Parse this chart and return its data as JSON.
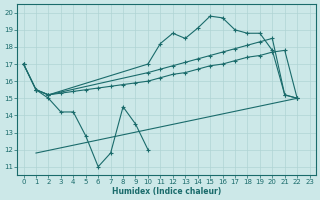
{
  "xlabel": "Humidex (Indice chaleur)",
  "bg_color": "#cce8e8",
  "line_color": "#1a6b6b",
  "grid_color": "#b0d4d4",
  "xlim": [
    -0.5,
    23.5
  ],
  "ylim": [
    10.5,
    20.5
  ],
  "xticks": [
    0,
    1,
    2,
    3,
    4,
    5,
    6,
    7,
    8,
    9,
    10,
    11,
    12,
    13,
    14,
    15,
    16,
    17,
    18,
    19,
    20,
    21,
    22,
    23
  ],
  "yticks": [
    11,
    12,
    13,
    14,
    15,
    16,
    17,
    18,
    19,
    20
  ],
  "series_main": {
    "x": [
      0,
      1,
      2,
      10,
      11,
      12,
      13,
      14,
      15,
      16,
      17,
      18,
      19,
      20,
      21,
      22
    ],
    "y": [
      17.0,
      15.5,
      15.2,
      17.0,
      18.2,
      18.8,
      18.5,
      19.1,
      19.8,
      19.7,
      19.0,
      18.8,
      18.8,
      17.8,
      15.2,
      15.0
    ]
  },
  "series_mid_upper": {
    "x": [
      0,
      1,
      2,
      10,
      11,
      12,
      13,
      14,
      15,
      16,
      17,
      18,
      19,
      20,
      21,
      22
    ],
    "y": [
      17.0,
      15.5,
      15.2,
      16.5,
      16.7,
      16.9,
      17.1,
      17.3,
      17.5,
      17.7,
      17.9,
      18.1,
      18.3,
      18.5,
      15.2,
      15.0
    ]
  },
  "series_mid_lower": {
    "x": [
      0,
      1,
      2,
      3,
      4,
      5,
      6,
      7,
      8,
      9,
      10,
      11,
      12,
      13,
      14,
      15,
      16,
      17,
      18,
      19,
      20,
      21,
      22
    ],
    "y": [
      17.0,
      15.5,
      15.2,
      15.3,
      15.4,
      15.5,
      15.6,
      15.7,
      15.8,
      15.9,
      16.0,
      16.2,
      16.4,
      16.5,
      16.7,
      16.9,
      17.0,
      17.2,
      17.4,
      17.5,
      17.7,
      17.8,
      15.0
    ]
  },
  "series_zigzag": {
    "x": [
      1,
      2,
      3,
      4,
      5,
      6,
      7,
      8,
      9,
      10
    ],
    "y": [
      15.5,
      15.0,
      14.2,
      14.2,
      12.8,
      11.0,
      11.8,
      14.5,
      13.5,
      12.0
    ]
  },
  "series_bottom": {
    "x": [
      1,
      22
    ],
    "y": [
      11.8,
      15.0
    ]
  }
}
